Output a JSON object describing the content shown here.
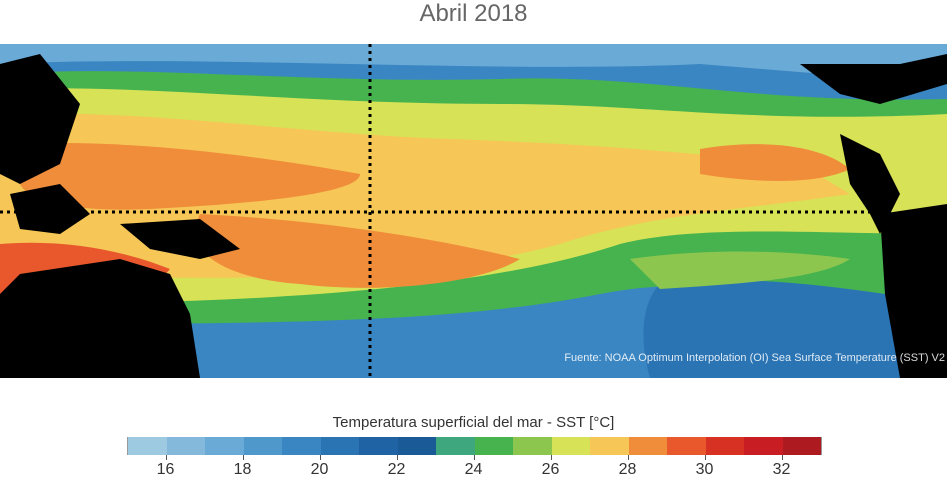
{
  "title": "Abril 2018",
  "map": {
    "kind": "sea-surface-temperature-map",
    "region": "Tropical Pacific",
    "gridlines": "dotted",
    "land_color": "#000000",
    "source": "Fuente: NOAA Optimum Interpolation (OI) Sea Surface Temperature (SST) V2"
  },
  "colorbar": {
    "title": "Temperatura superficial del mar - SST  [°C]",
    "colors": [
      "#9ecae1",
      "#85b9dc",
      "#6aaad6",
      "#4f98cc",
      "#3a86c2",
      "#2a74b4",
      "#1f63a5",
      "#1a5a96",
      "#3fa77e",
      "#46b34f",
      "#8cc64e",
      "#d7e257",
      "#f6c756",
      "#f08d3b",
      "#e8582c",
      "#d73124",
      "#c81e23",
      "#ad1a1f"
    ],
    "ticks": [
      "16",
      "18",
      "20",
      "22",
      "24",
      "26",
      "28",
      "30",
      "32"
    ],
    "tick_values": [
      16,
      18,
      20,
      22,
      24,
      26,
      28,
      30,
      32
    ],
    "range": [
      15,
      33
    ]
  }
}
